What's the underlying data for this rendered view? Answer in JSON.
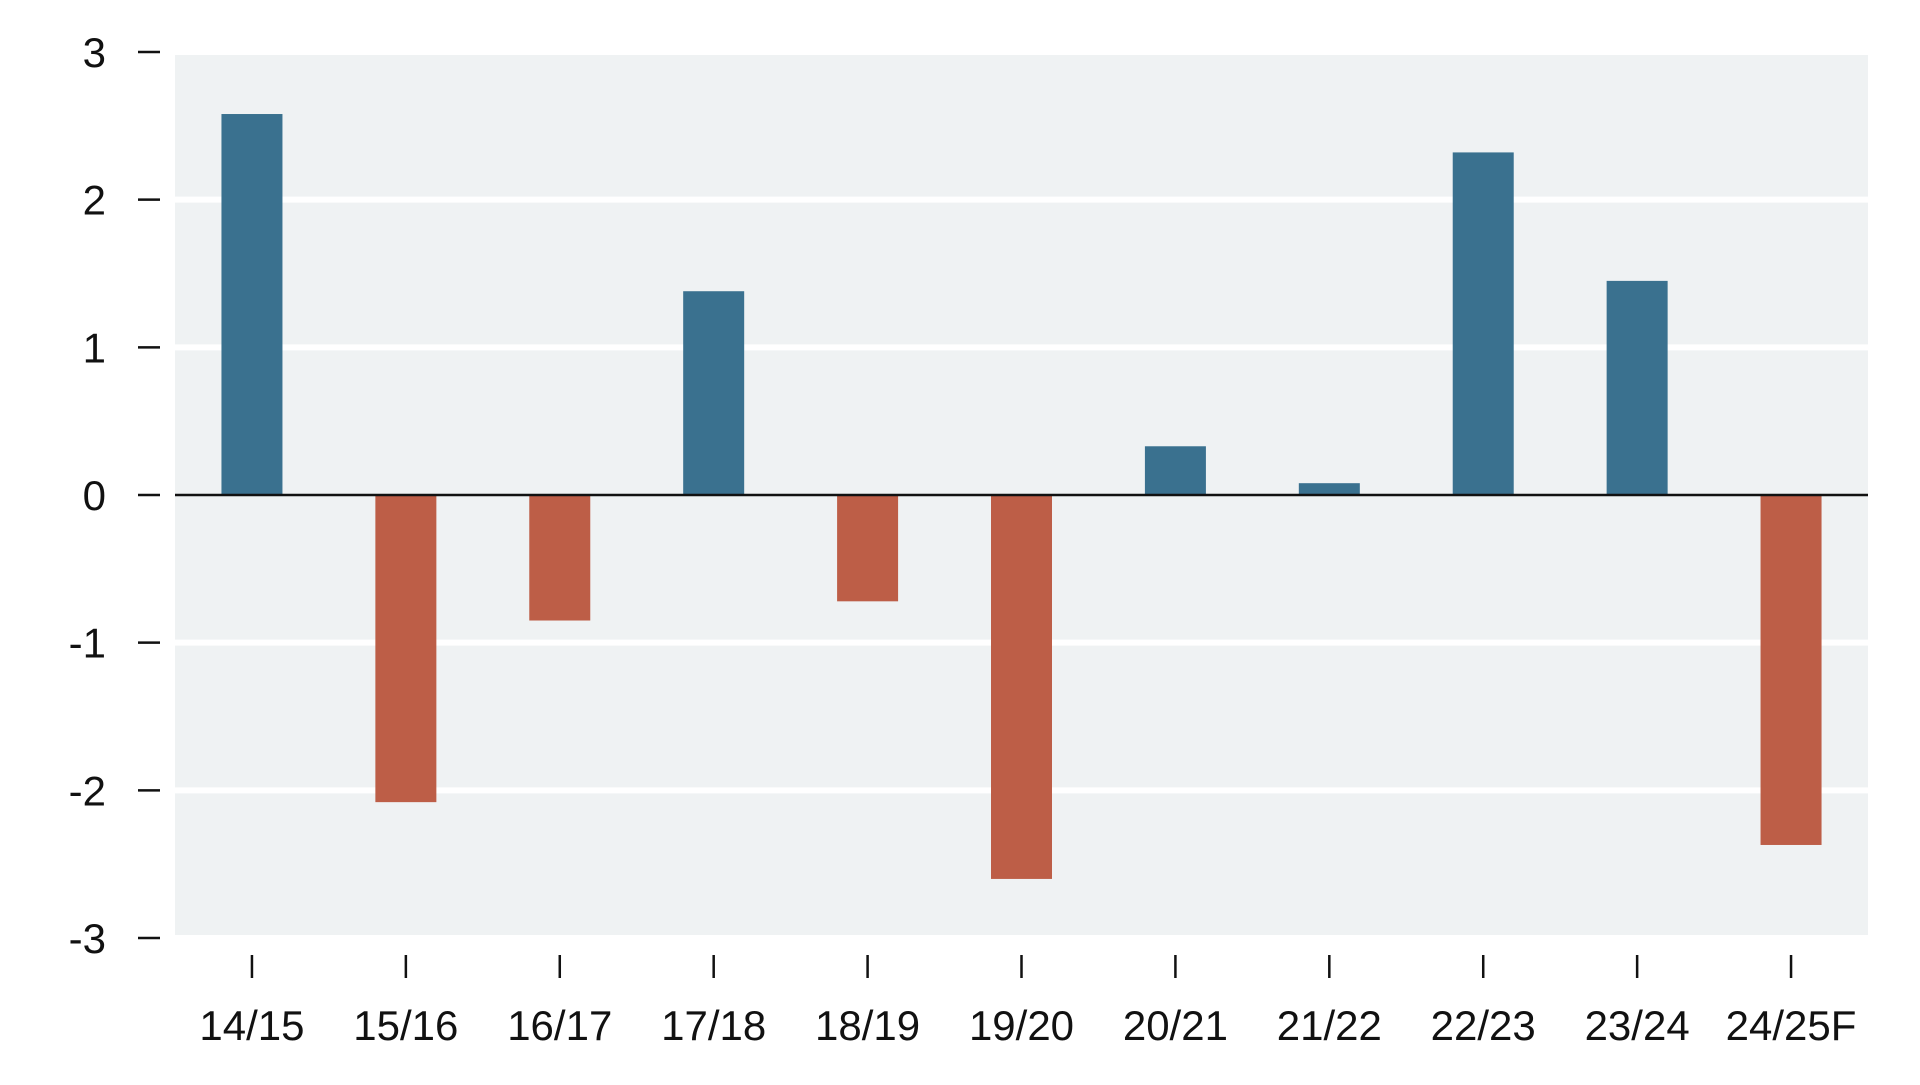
{
  "chart_data": {
    "type": "bar",
    "title": "",
    "xlabel": "",
    "ylabel": "",
    "categories": [
      "14/15",
      "15/16",
      "16/17",
      "17/18",
      "18/19",
      "19/20",
      "20/21",
      "21/22",
      "22/23",
      "23/24",
      "24/25F"
    ],
    "values": [
      2.58,
      -2.08,
      -0.85,
      1.38,
      -0.72,
      -2.6,
      0.33,
      0.08,
      2.32,
      1.45,
      -2.37
    ],
    "ylim": [
      -3,
      3
    ],
    "yticks": [
      3,
      2,
      1,
      0,
      -1,
      -2,
      -3
    ],
    "ytick_labels": [
      "3",
      "2",
      "1",
      "0",
      "-1",
      "-2",
      "-3"
    ],
    "grid": true,
    "legend": "none",
    "colors": {
      "positive": "#3a718f",
      "negative": "#bd5e47",
      "plot_background": "#eff2f3",
      "gridline": "#ffffff",
      "zero_line": "#111111"
    }
  }
}
